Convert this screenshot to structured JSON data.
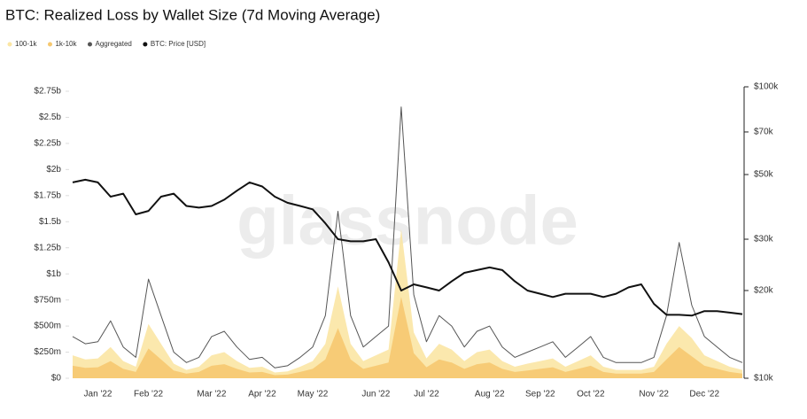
{
  "chart_data": {
    "type": "area-line",
    "title": "BTC: Realized Loss by Wallet Size (7d Moving Average)",
    "watermark": "glassnode",
    "legend": "top-left",
    "categories": [
      null,
      null,
      "Jan '22",
      null,
      null,
      null,
      "Feb '22",
      null,
      null,
      null,
      null,
      "Mar '22",
      null,
      null,
      null,
      "Apr '22",
      null,
      null,
      null,
      "May '22",
      null,
      null,
      null,
      null,
      "Jun '22",
      null,
      null,
      null,
      "Jul '22",
      null,
      null,
      null,
      null,
      "Aug '22",
      null,
      null,
      null,
      "Sep '22",
      null,
      null,
      null,
      "Oct '22",
      null,
      null,
      null,
      null,
      "Nov '22",
      null,
      null,
      null,
      "Dec '22",
      null,
      null,
      null
    ],
    "ylim": [
      0,
      2750000000
    ],
    "yticks": [
      {
        "value": 0,
        "label": "$0"
      },
      {
        "value": 250000000,
        "label": "$250m"
      },
      {
        "value": 500000000,
        "label": "$500m"
      },
      {
        "value": 750000000,
        "label": "$750m"
      },
      {
        "value": 1000000000,
        "label": "$1b"
      },
      {
        "value": 1250000000,
        "label": "$1.25b"
      },
      {
        "value": 1500000000,
        "label": "$1.5b"
      },
      {
        "value": 1750000000,
        "label": "$1.75b"
      },
      {
        "value": 2000000000,
        "label": "$2b"
      },
      {
        "value": 2250000000,
        "label": "$2.25b"
      },
      {
        "value": 2500000000,
        "label": "$2.5b"
      },
      {
        "value": 2750000000,
        "label": "$2.75b"
      }
    ],
    "y2lim": [
      10000,
      100000
    ],
    "y2log": true,
    "y2ticks": [
      {
        "value": 10000,
        "label": "$10k"
      },
      {
        "value": 20000,
        "label": "$20k"
      },
      {
        "value": 30000,
        "label": "$30k"
      },
      {
        "value": 50000,
        "label": "$50k"
      },
      {
        "value": 70000,
        "label": "$70k"
      },
      {
        "value": 100000,
        "label": "$100k"
      }
    ],
    "series": [
      {
        "name": "100-1k",
        "kind": "area",
        "color": "#fbe6a4",
        "values": [
          220000000.0,
          180000000.0,
          190000000.0,
          300000000.0,
          165000000.0,
          110000000.0,
          520000000.0,
          330000000.0,
          140000000.0,
          80000000.0,
          110000000.0,
          220000000.0,
          250000000.0,
          165000000.0,
          100000000.0,
          110000000.0,
          55000000.0,
          65000000.0,
          110000000.0,
          165000000.0,
          330000000.0,
          880000000.0,
          330000000.0,
          165000000.0,
          220000000.0,
          275000000.0,
          1430000000.0,
          440000000.0,
          190000000.0,
          330000000.0,
          275000000.0,
          165000000.0,
          250000000.0,
          275000000.0,
          165000000.0,
          110000000.0,
          140000000.0,
          165000000.0,
          190000000.0,
          110000000.0,
          165000000.0,
          220000000.0,
          110000000.0,
          80000000.0,
          80000000.0,
          80000000.0,
          110000000.0,
          330000000.0,
          500000000.0,
          385000000.0,
          220000000.0,
          165000000.0,
          110000000.0,
          80000000.0
        ]
      },
      {
        "name": "1k-10k",
        "kind": "area",
        "color": "#f6c870",
        "values": [
          120000000.0,
          100000000.0,
          105000000.0,
          165000000.0,
          90000000.0,
          60000000.0,
          285000000.0,
          180000000.0,
          75000000.0,
          45000000.0,
          60000000.0,
          120000000.0,
          135000000.0,
          90000000.0,
          55000000.0,
          60000000.0,
          30000000.0,
          35000000.0,
          60000000.0,
          90000000.0,
          180000000.0,
          480000000.0,
          180000000.0,
          90000000.0,
          120000000.0,
          150000000.0,
          780000000.0,
          240000000.0,
          105000000.0,
          180000000.0,
          150000000.0,
          90000000.0,
          135000000.0,
          150000000.0,
          90000000.0,
          60000000.0,
          75000000.0,
          90000000.0,
          105000000.0,
          60000000.0,
          90000000.0,
          120000000.0,
          60000000.0,
          45000000.0,
          45000000.0,
          45000000.0,
          60000000.0,
          180000000.0,
          300000000.0,
          210000000.0,
          120000000.0,
          90000000.0,
          60000000.0,
          45000000.0
        ]
      },
      {
        "name": "Aggregated",
        "kind": "line",
        "color": "#555555",
        "values": [
          400000000.0,
          330000000.0,
          350000000.0,
          550000000.0,
          300000000.0,
          200000000.0,
          950000000.0,
          600000000.0,
          250000000.0,
          150000000.0,
          200000000.0,
          400000000.0,
          450000000.0,
          300000000.0,
          180000000.0,
          200000000.0,
          100000000.0,
          120000000.0,
          200000000.0,
          300000000.0,
          600000000.0,
          1600000000.0,
          600000000.0,
          300000000.0,
          400000000.0,
          500000000.0,
          2600000000.0,
          800000000.0,
          350000000.0,
          600000000.0,
          500000000.0,
          300000000.0,
          450000000.0,
          500000000.0,
          300000000.0,
          200000000.0,
          250000000.0,
          300000000.0,
          350000000.0,
          200000000.0,
          300000000.0,
          400000000.0,
          200000000.0,
          150000000.0,
          150000000.0,
          150000000.0,
          200000000.0,
          600000000.0,
          1300000000.0,
          700000000.0,
          400000000.0,
          300000000.0,
          200000000.0,
          150000000.0
        ]
      },
      {
        "name": "BTC: Price [USD]",
        "kind": "line",
        "axis": "y2",
        "color": "#111111",
        "values": [
          47000,
          48000,
          47000,
          42000,
          43000,
          36500,
          37500,
          42000,
          43000,
          39000,
          38500,
          39000,
          41000,
          44000,
          47000,
          45500,
          42000,
          40000,
          39000,
          38000,
          34000,
          30000,
          29500,
          29500,
          30000,
          25000,
          20000,
          21000,
          20500,
          20000,
          21500,
          23000,
          23500,
          24000,
          23500,
          21500,
          20000,
          19500,
          19000,
          19500,
          19500,
          19500,
          19000,
          19500,
          20500,
          21000,
          18000,
          16500,
          16500,
          16400,
          17000,
          17000,
          16800,
          16600
        ]
      }
    ]
  }
}
